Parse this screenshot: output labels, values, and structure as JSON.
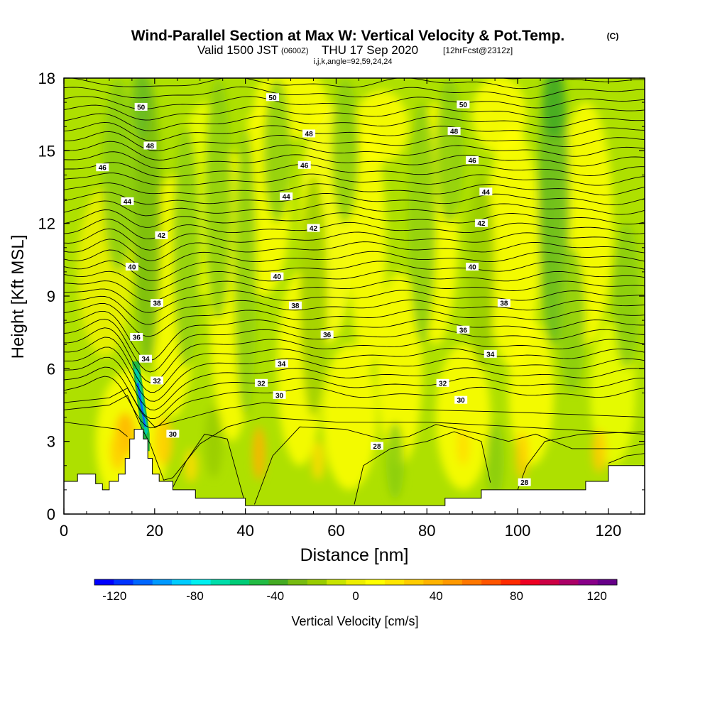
{
  "title": {
    "main": "Wind-Parallel Section at Max W: Vertical Velocity & Pot.Temp.",
    "copyright": "(C)",
    "valid_prefix": "Valid 1500 JST",
    "valid_utc": "(0600Z)",
    "valid_date": "THU 17 Sep 2020",
    "forecast": "[12hrFcst@2312z]",
    "indices": "i,j,k,angle=92,59,24,24"
  },
  "colorbar": {
    "label": "Vertical Velocity [cm/s]",
    "ticks": [
      "-120",
      "-80",
      "-40",
      "0",
      "40",
      "80",
      "120"
    ],
    "range": [
      -130,
      130
    ],
    "colors": [
      "#0000ff",
      "#0033ff",
      "#0066ff",
      "#0099ff",
      "#00ccff",
      "#00f0f0",
      "#00ddaa",
      "#00cc77",
      "#22bb44",
      "#44aa22",
      "#77bb11",
      "#99cc00",
      "#c8e400",
      "#eeee00",
      "#ffff00",
      "#ffe600",
      "#ffcc00",
      "#ffb300",
      "#ff9900",
      "#ff7700",
      "#ff5500",
      "#ff2a00",
      "#ee0022",
      "#cc0044",
      "#aa0066",
      "#880088",
      "#660088"
    ]
  },
  "chart_data": {
    "type": "heatmap",
    "title": "Wind-Parallel Section at Max W: Vertical Velocity & Pot.Temp.",
    "xlabel": "Distance [nm]",
    "ylabel": "Height [Kft MSL]",
    "xlim": [
      0,
      128
    ],
    "ylim": [
      0,
      18
    ],
    "xticks": [
      "0",
      "20",
      "40",
      "60",
      "80",
      "100",
      "120"
    ],
    "yticks": [
      "0",
      "3",
      "6",
      "9",
      "12",
      "15",
      "18"
    ],
    "fill_variable": "Vertical Velocity [cm/s]",
    "contour_variable": "Potential Temperature",
    "terrain_kft": [
      [
        0,
        1.35
      ],
      [
        3,
        1.35
      ],
      [
        3,
        1.65
      ],
      [
        7,
        1.65
      ],
      [
        7,
        1.25
      ],
      [
        8.5,
        1.25
      ],
      [
        8.5,
        1.0
      ],
      [
        10,
        1.0
      ],
      [
        10,
        1.35
      ],
      [
        12,
        1.35
      ],
      [
        12,
        1.65
      ],
      [
        13.5,
        1.65
      ],
      [
        13.5,
        2.3
      ],
      [
        14.5,
        2.3
      ],
      [
        14.5,
        3.1
      ],
      [
        15.5,
        3.1
      ],
      [
        15.5,
        3.5
      ],
      [
        17.5,
        3.5
      ],
      [
        17.5,
        3.1
      ],
      [
        18.5,
        3.1
      ],
      [
        18.5,
        2.3
      ],
      [
        19.5,
        2.3
      ],
      [
        19.5,
        1.65
      ],
      [
        21,
        1.65
      ],
      [
        21,
        1.35
      ],
      [
        24,
        1.35
      ],
      [
        24,
        1.0
      ],
      [
        29,
        1.0
      ],
      [
        29,
        0.65
      ],
      [
        40,
        0.65
      ],
      [
        40,
        0.35
      ],
      [
        84,
        0.35
      ],
      [
        84,
        0.65
      ],
      [
        92,
        0.65
      ],
      [
        92,
        1.0
      ],
      [
        115,
        1.0
      ],
      [
        115,
        1.35
      ],
      [
        120,
        1.35
      ],
      [
        120,
        2.0
      ],
      [
        128,
        2.0
      ]
    ],
    "contour_label_values": [
      "50",
      "48",
      "46",
      "44",
      "42",
      "40",
      "38",
      "36",
      "34",
      "32",
      "30",
      "28"
    ],
    "contour_labels": [
      {
        "text": "50",
        "x": 17,
        "y": 16.8
      },
      {
        "text": "50",
        "x": 46,
        "y": 17.2
      },
      {
        "text": "50",
        "x": 88,
        "y": 16.9
      },
      {
        "text": "48",
        "x": 19,
        "y": 15.2
      },
      {
        "text": "48",
        "x": 54,
        "y": 15.7
      },
      {
        "text": "48",
        "x": 86,
        "y": 15.8
      },
      {
        "text": "46",
        "x": 8.5,
        "y": 14.3
      },
      {
        "text": "46",
        "x": 53,
        "y": 14.4
      },
      {
        "text": "46",
        "x": 90,
        "y": 14.6
      },
      {
        "text": "44",
        "x": 14,
        "y": 12.9
      },
      {
        "text": "44",
        "x": 49,
        "y": 13.1
      },
      {
        "text": "44",
        "x": 93,
        "y": 13.3
      },
      {
        "text": "42",
        "x": 21.5,
        "y": 11.5
      },
      {
        "text": "42",
        "x": 55,
        "y": 11.8
      },
      {
        "text": "42",
        "x": 92,
        "y": 12.0
      },
      {
        "text": "40",
        "x": 15,
        "y": 10.2
      },
      {
        "text": "40",
        "x": 47,
        "y": 9.8
      },
      {
        "text": "40",
        "x": 90,
        "y": 10.2
      },
      {
        "text": "38",
        "x": 20.5,
        "y": 8.7
      },
      {
        "text": "38",
        "x": 51,
        "y": 8.6
      },
      {
        "text": "38",
        "x": 97,
        "y": 8.7
      },
      {
        "text": "36",
        "x": 16,
        "y": 7.3
      },
      {
        "text": "36",
        "x": 58,
        "y": 7.4
      },
      {
        "text": "36",
        "x": 88,
        "y": 7.6
      },
      {
        "text": "34",
        "x": 18,
        "y": 6.4
      },
      {
        "text": "34",
        "x": 48,
        "y": 6.2
      },
      {
        "text": "34",
        "x": 94,
        "y": 6.6
      },
      {
        "text": "32",
        "x": 20.5,
        "y": 5.5
      },
      {
        "text": "32",
        "x": 43.5,
        "y": 5.4
      },
      {
        "text": "32",
        "x": 83.5,
        "y": 5.4
      },
      {
        "text": "30",
        "x": 24,
        "y": 3.3
      },
      {
        "text": "30",
        "x": 47.5,
        "y": 4.9
      },
      {
        "text": "30",
        "x": 87.5,
        "y": 4.7
      },
      {
        "text": "28",
        "x": 69,
        "y": 2.8
      },
      {
        "text": "28",
        "x": 101.5,
        "y": 1.3
      }
    ]
  }
}
